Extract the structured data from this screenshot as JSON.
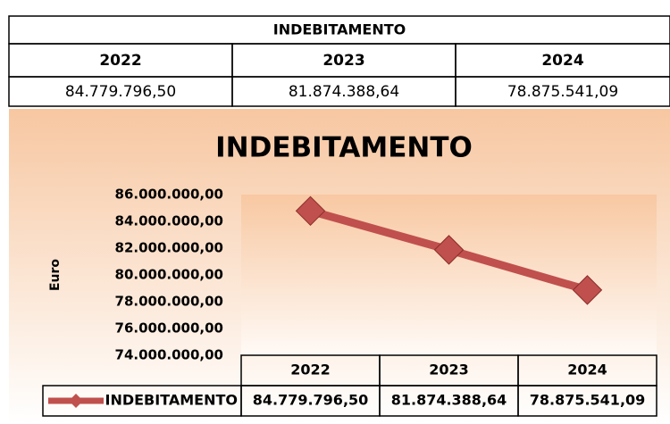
{
  "table": {
    "title": "INDEBITAMENTO",
    "header": [
      "2022",
      "2023",
      "2024"
    ],
    "rows": [
      [
        "84.779.796,50",
        "81.874.388,64",
        "78.875.541,09"
      ]
    ]
  },
  "chart_data": {
    "type": "line",
    "title": "INDEBITAMENTO",
    "y_label": "Euro",
    "categories": [
      "2022",
      "2023",
      "2024"
    ],
    "series": [
      {
        "name": "INDEBITAMENTO",
        "color": "#c0504d",
        "values": [
          84779796.5,
          81874388.64,
          78875541.09
        ],
        "value_labels": [
          "84.779.796,50",
          "81.874.388,64",
          "78.875.541,09"
        ]
      }
    ],
    "ylim": [
      74000000,
      86000000
    ],
    "yticks": [
      {
        "value": 74000000,
        "label": "74.000.000,00"
      },
      {
        "value": 76000000,
        "label": "76.000.000,00"
      },
      {
        "value": 78000000,
        "label": "78.000.000,00"
      },
      {
        "value": 80000000,
        "label": "80.000.000,00"
      },
      {
        "value": 82000000,
        "label": "82.000.000,00"
      },
      {
        "value": 84000000,
        "label": "84.000.000,00"
      },
      {
        "value": 86000000,
        "label": "86.000.000,00"
      }
    ],
    "grid": false
  }
}
